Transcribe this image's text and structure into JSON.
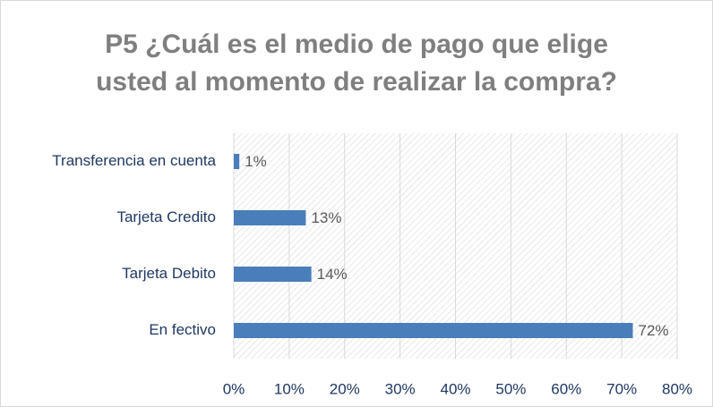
{
  "chart_data": {
    "type": "bar",
    "orientation": "horizontal",
    "title": "P5 ¿Cuál es el medio de pago que elige\nusted al momento de realizar la  compra?",
    "categories": [
      "Transferencia en cuenta",
      "Tarjeta Credito",
      "Tarjeta Debito",
      "En fectivo"
    ],
    "values": [
      1,
      13,
      14,
      72
    ],
    "value_labels": [
      "1%",
      "13%",
      "14%",
      "72%"
    ],
    "color": "#4a7ebb",
    "xlim": [
      0,
      80
    ],
    "xticks": [
      {
        "value": 0,
        "label": "0%"
      },
      {
        "value": 10,
        "label": "10%"
      },
      {
        "value": 20,
        "label": "20%"
      },
      {
        "value": 30,
        "label": "30%"
      },
      {
        "value": 40,
        "label": "40%"
      },
      {
        "value": 50,
        "label": "50%"
      },
      {
        "value": 60,
        "label": "60%"
      },
      {
        "value": 70,
        "label": "70%"
      },
      {
        "value": 80,
        "label": "80%"
      }
    ],
    "grid": true
  }
}
